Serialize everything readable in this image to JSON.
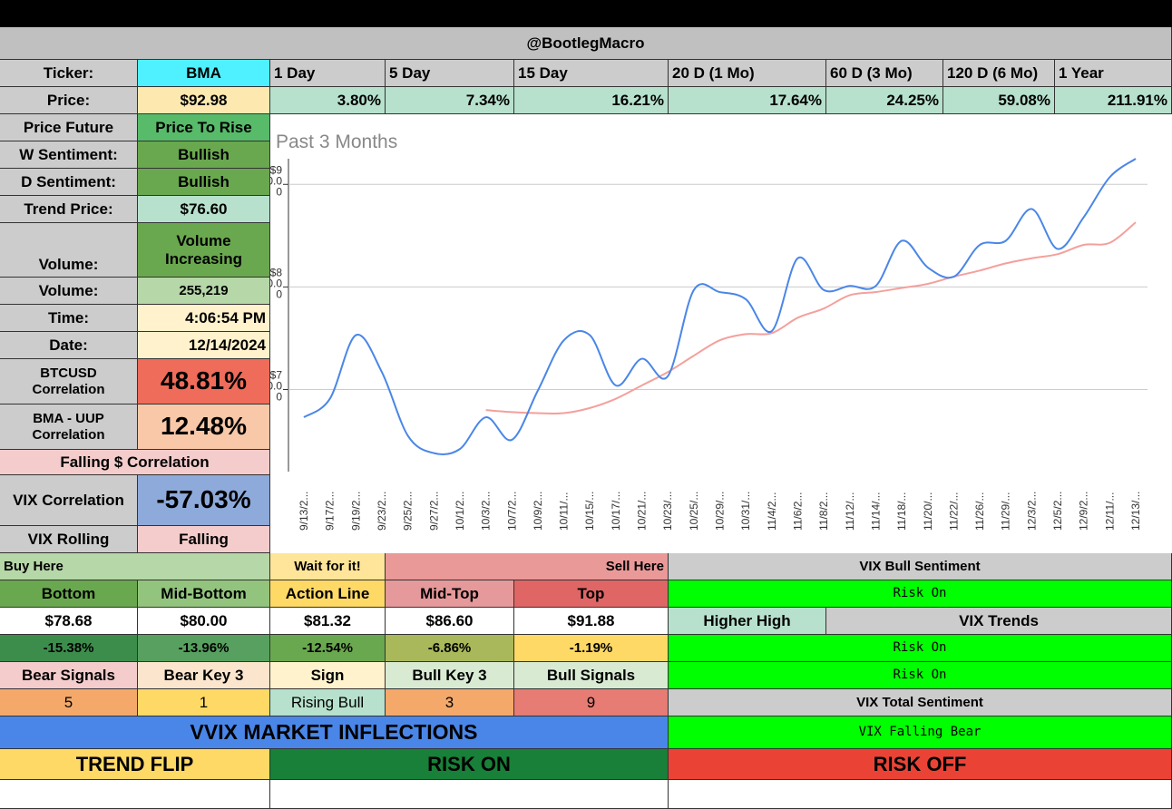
{
  "header": "@BootlegMacro",
  "ticker": {
    "label": "Ticker:",
    "value": "BMA"
  },
  "price": {
    "label": "Price:",
    "value": "$92.98"
  },
  "periods": [
    "1 Day",
    "5 Day",
    "15 Day",
    "20 D (1 Mo)",
    "60 D (3 Mo)",
    "120 D (6 Mo)",
    "1 Year"
  ],
  "returns": [
    "3.80%",
    "7.34%",
    "16.21%",
    "17.64%",
    "24.25%",
    "59.08%",
    "211.91%"
  ],
  "left": [
    {
      "label": "Price Future",
      "value": "Price To Rise"
    },
    {
      "label": "W Sentiment:",
      "value": "Bullish"
    },
    {
      "label": "D Sentiment:",
      "value": "Bullish"
    },
    {
      "label": "Trend Price:",
      "value": "$76.60"
    },
    {
      "label": "Volume:",
      "value": "Volume Increasing"
    },
    {
      "label": "Volume:",
      "value": "255,219"
    },
    {
      "label": "Time:",
      "value": "4:06:54 PM"
    },
    {
      "label": "Date:",
      "value": "12/14/2024"
    },
    {
      "label": "BTCUSD Correlation",
      "value": "48.81%"
    },
    {
      "label": "BMA - UUP Correlation",
      "value": "12.48%"
    }
  ],
  "falling_correlation": "Falling $ Correlation",
  "vix_correlation": {
    "label": "VIX Correlation",
    "value": "-57.03%"
  },
  "vix_rolling": {
    "label": "VIX Rolling",
    "value": "Falling"
  },
  "zones": {
    "buy": "Buy Here",
    "wait": "Wait for it!",
    "sell": "Sell Here"
  },
  "levels": {
    "names": [
      "Bottom",
      "Mid-Bottom",
      "Action Line",
      "Mid-Top",
      "Top"
    ],
    "prices": [
      "$78.68",
      "$80.00",
      "$81.32",
      "$86.60",
      "$91.88"
    ],
    "changes": [
      "-15.38%",
      "-13.96%",
      "-12.54%",
      "-6.86%",
      "-1.19%"
    ]
  },
  "signals": {
    "names": [
      "Bear Signals",
      "Bear Key 3",
      "Sign",
      "Bull Key 3",
      "Bull Signals"
    ],
    "values": [
      "5",
      "1",
      "Rising Bull",
      "3",
      "9"
    ]
  },
  "vix": {
    "bull_sentiment": "VIX Bull Sentiment",
    "bull_value": "Risk On",
    "higher_high": "Higher High",
    "trends": "VIX Trends",
    "trend_values": [
      "Risk On",
      "Risk On"
    ],
    "total_sentiment": "VIX Total Sentiment",
    "total_value": "VIX Falling Bear"
  },
  "inflections": {
    "title": "VVIX MARKET INFLECTIONS",
    "labels": [
      "TREND FLIP",
      "RISK ON",
      "RISK OFF"
    ]
  },
  "chart_data": {
    "type": "line",
    "title": "Past 3 Months",
    "categories": [
      "9/13/2...",
      "9/17/2...",
      "9/19/2...",
      "9/23/2...",
      "9/25/2...",
      "9/27/2...",
      "10/1/2...",
      "10/3/2...",
      "10/7/2...",
      "10/9/2...",
      "10/11/...",
      "10/15/...",
      "10/17/...",
      "10/21/...",
      "10/23/...",
      "10/25/...",
      "10/29/...",
      "10/31/...",
      "11/4/2...",
      "11/6/2...",
      "11/8/2...",
      "11/12/...",
      "11/14/...",
      "11/18/...",
      "11/20/...",
      "11/22/...",
      "11/26/...",
      "11/29/...",
      "12/3/2...",
      "12/5/2...",
      "12/9/2...",
      "12/11/...",
      "12/13/..."
    ],
    "series": [
      {
        "color": "#4a86e8",
        "values": [
          67.3,
          69.1,
          75.3,
          71.7,
          65.5,
          63.8,
          64.2,
          67.3,
          65.1,
          69.9,
          74.8,
          75.3,
          70.4,
          73.0,
          71.3,
          79.7,
          79.5,
          78.8,
          75.7,
          82.8,
          79.7,
          80.1,
          80.1,
          84.5,
          81.9,
          81.0,
          84.1,
          84.5,
          87.6,
          83.7,
          86.8,
          90.7,
          92.5
        ]
      },
      {
        "color": "#f4a09c",
        "values": [
          null,
          null,
          null,
          null,
          null,
          null,
          null,
          68.0,
          67.8,
          67.7,
          67.7,
          68.2,
          69.1,
          70.4,
          71.7,
          73.3,
          74.8,
          75.4,
          75.5,
          77.0,
          77.9,
          79.2,
          79.5,
          79.9,
          80.3,
          81.0,
          81.6,
          82.3,
          82.8,
          83.2,
          84.1,
          84.3,
          86.3
        ]
      }
    ],
    "ylim": [
      62,
      92.5
    ],
    "yticks": [
      {
        "value": 70,
        "label": "$70.00"
      },
      {
        "value": 80,
        "label": "$80.00"
      },
      {
        "value": 90,
        "label": "$90.00"
      }
    ],
    "grid": true
  }
}
